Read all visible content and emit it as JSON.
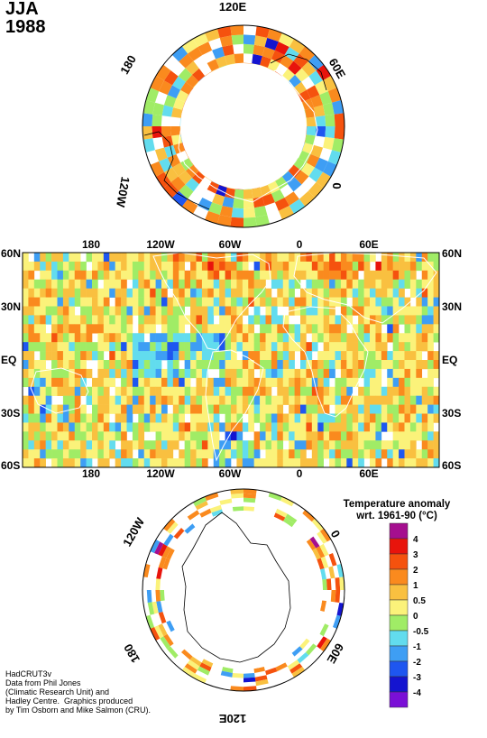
{
  "header": {
    "season": "JJA",
    "year": "1988"
  },
  "north_polar": {
    "longitude_labels": [
      {
        "text": "120E"
      },
      {
        "text": "60E"
      },
      {
        "text": "0"
      },
      {
        "text": "120W"
      },
      {
        "text": "180"
      }
    ]
  },
  "global_map": {
    "top_ticks": [
      "180",
      "120W",
      "60W",
      "0",
      "60E"
    ],
    "bottom_ticks": [
      "180",
      "120W",
      "60W",
      "0",
      "60E"
    ],
    "left_lat": [
      "60N",
      "30N",
      "EQ",
      "30S",
      "60S"
    ],
    "right_lat": [
      "60N",
      "30N",
      "EQ",
      "30S",
      "60S"
    ]
  },
  "south_polar": {
    "longitude_labels": [
      {
        "text": "120W"
      },
      {
        "text": "0"
      },
      {
        "text": "60E"
      },
      {
        "text": "120E"
      },
      {
        "text": "180"
      }
    ]
  },
  "legend": {
    "title_line1": "Temperature anomaly",
    "title_line2": "wrt. 1961-90  (°C)",
    "levels": [
      "4",
      "3",
      "2",
      "1",
      "0.5",
      "0",
      "-0.5",
      "-1",
      "-2",
      "-3",
      "-4"
    ],
    "colors": [
      "#a50f8f",
      "#e8140c",
      "#f5520e",
      "#fa8a1e",
      "#f9c040",
      "#fbf27a",
      "#a0ec66",
      "#62dcee",
      "#3e9ef4",
      "#1e56f0",
      "#1414d0",
      "#7a10d6"
    ]
  },
  "credits": {
    "line1": "HadCRUT3v",
    "line2": "Data from Phil Jones",
    "line3": "(Climatic Research Unit) and",
    "line4": "Hadley Centre.  Graphics produced",
    "line5": "by Tim Osborn and Mike Salmon (CRU)."
  }
}
